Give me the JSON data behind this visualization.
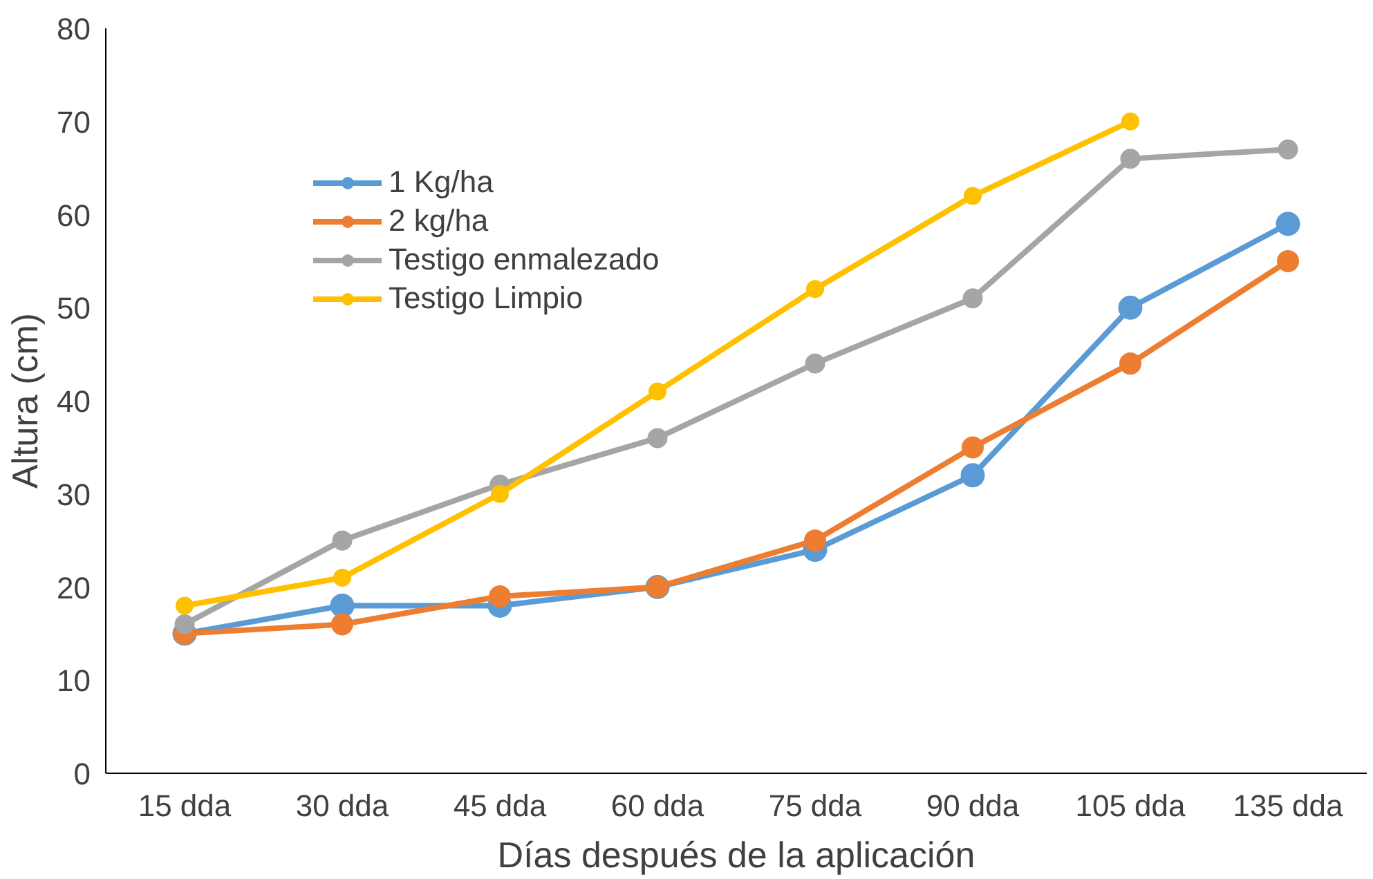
{
  "chart_data": {
    "type": "line",
    "xlabel": "Días después de la aplicación",
    "ylabel": "Altura (cm)",
    "categories": [
      "15 dda",
      "30 dda",
      "45 dda",
      "60 dda",
      "75 dda",
      "90 dda",
      "105 dda",
      "135 dda"
    ],
    "series": [
      {
        "name": "1 Kg/ha",
        "color": "#5b9bd5",
        "values": [
          15,
          18,
          18,
          20,
          24,
          32,
          50,
          59
        ]
      },
      {
        "name": "2 kg/ha",
        "color": "#ed7d31",
        "values": [
          15,
          16,
          19,
          20,
          25,
          35,
          44,
          55
        ]
      },
      {
        "name": "Testigo enmalezado",
        "color": "#a5a5a5",
        "values": [
          16,
          25,
          31,
          36,
          44,
          51,
          66,
          67
        ]
      },
      {
        "name": "Testigo Limpio",
        "color": "#ffc000",
        "values": [
          18,
          21,
          30,
          41,
          52,
          62,
          70,
          null
        ]
      }
    ],
    "ylim": [
      0,
      80
    ],
    "yticks": [
      0,
      10,
      20,
      30,
      40,
      50,
      60,
      70,
      80
    ],
    "grid": false,
    "legend": "top left",
    "marker": "circle",
    "line_style": "solid"
  }
}
